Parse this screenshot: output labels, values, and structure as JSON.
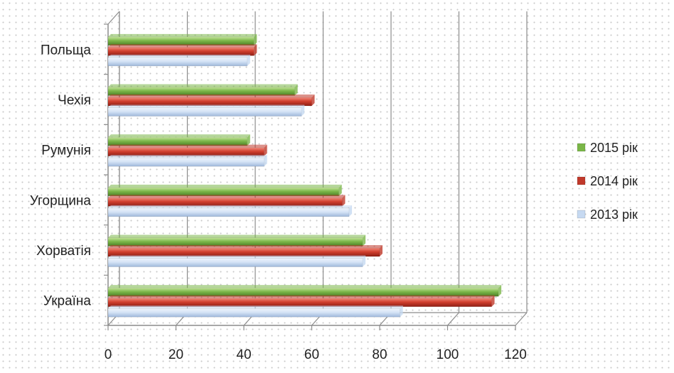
{
  "chart_data": {
    "type": "bar",
    "orientation": "horizontal",
    "categories": [
      "Україна",
      "Хорватія",
      "Угорщина",
      "Румунія",
      "Чехія",
      "Польща"
    ],
    "series": [
      {
        "name": "2013 рік",
        "color": "#c6d9f1",
        "values": [
          86,
          75,
          71,
          46,
          57,
          41
        ]
      },
      {
        "name": "2014 рік",
        "color": "#c0392b",
        "values": [
          113,
          80,
          69,
          46,
          60,
          43
        ]
      },
      {
        "name": "2015 рік",
        "color": "#7ab648",
        "values": [
          115,
          75,
          68,
          41,
          55,
          43
        ]
      }
    ],
    "x_ticks": [
      "0",
      "20",
      "40",
      "60",
      "80",
      "100",
      "120"
    ],
    "xlim": [
      0,
      120
    ],
    "grid": true,
    "legend_position": "right",
    "title": "",
    "xlabel": "",
    "ylabel": ""
  }
}
